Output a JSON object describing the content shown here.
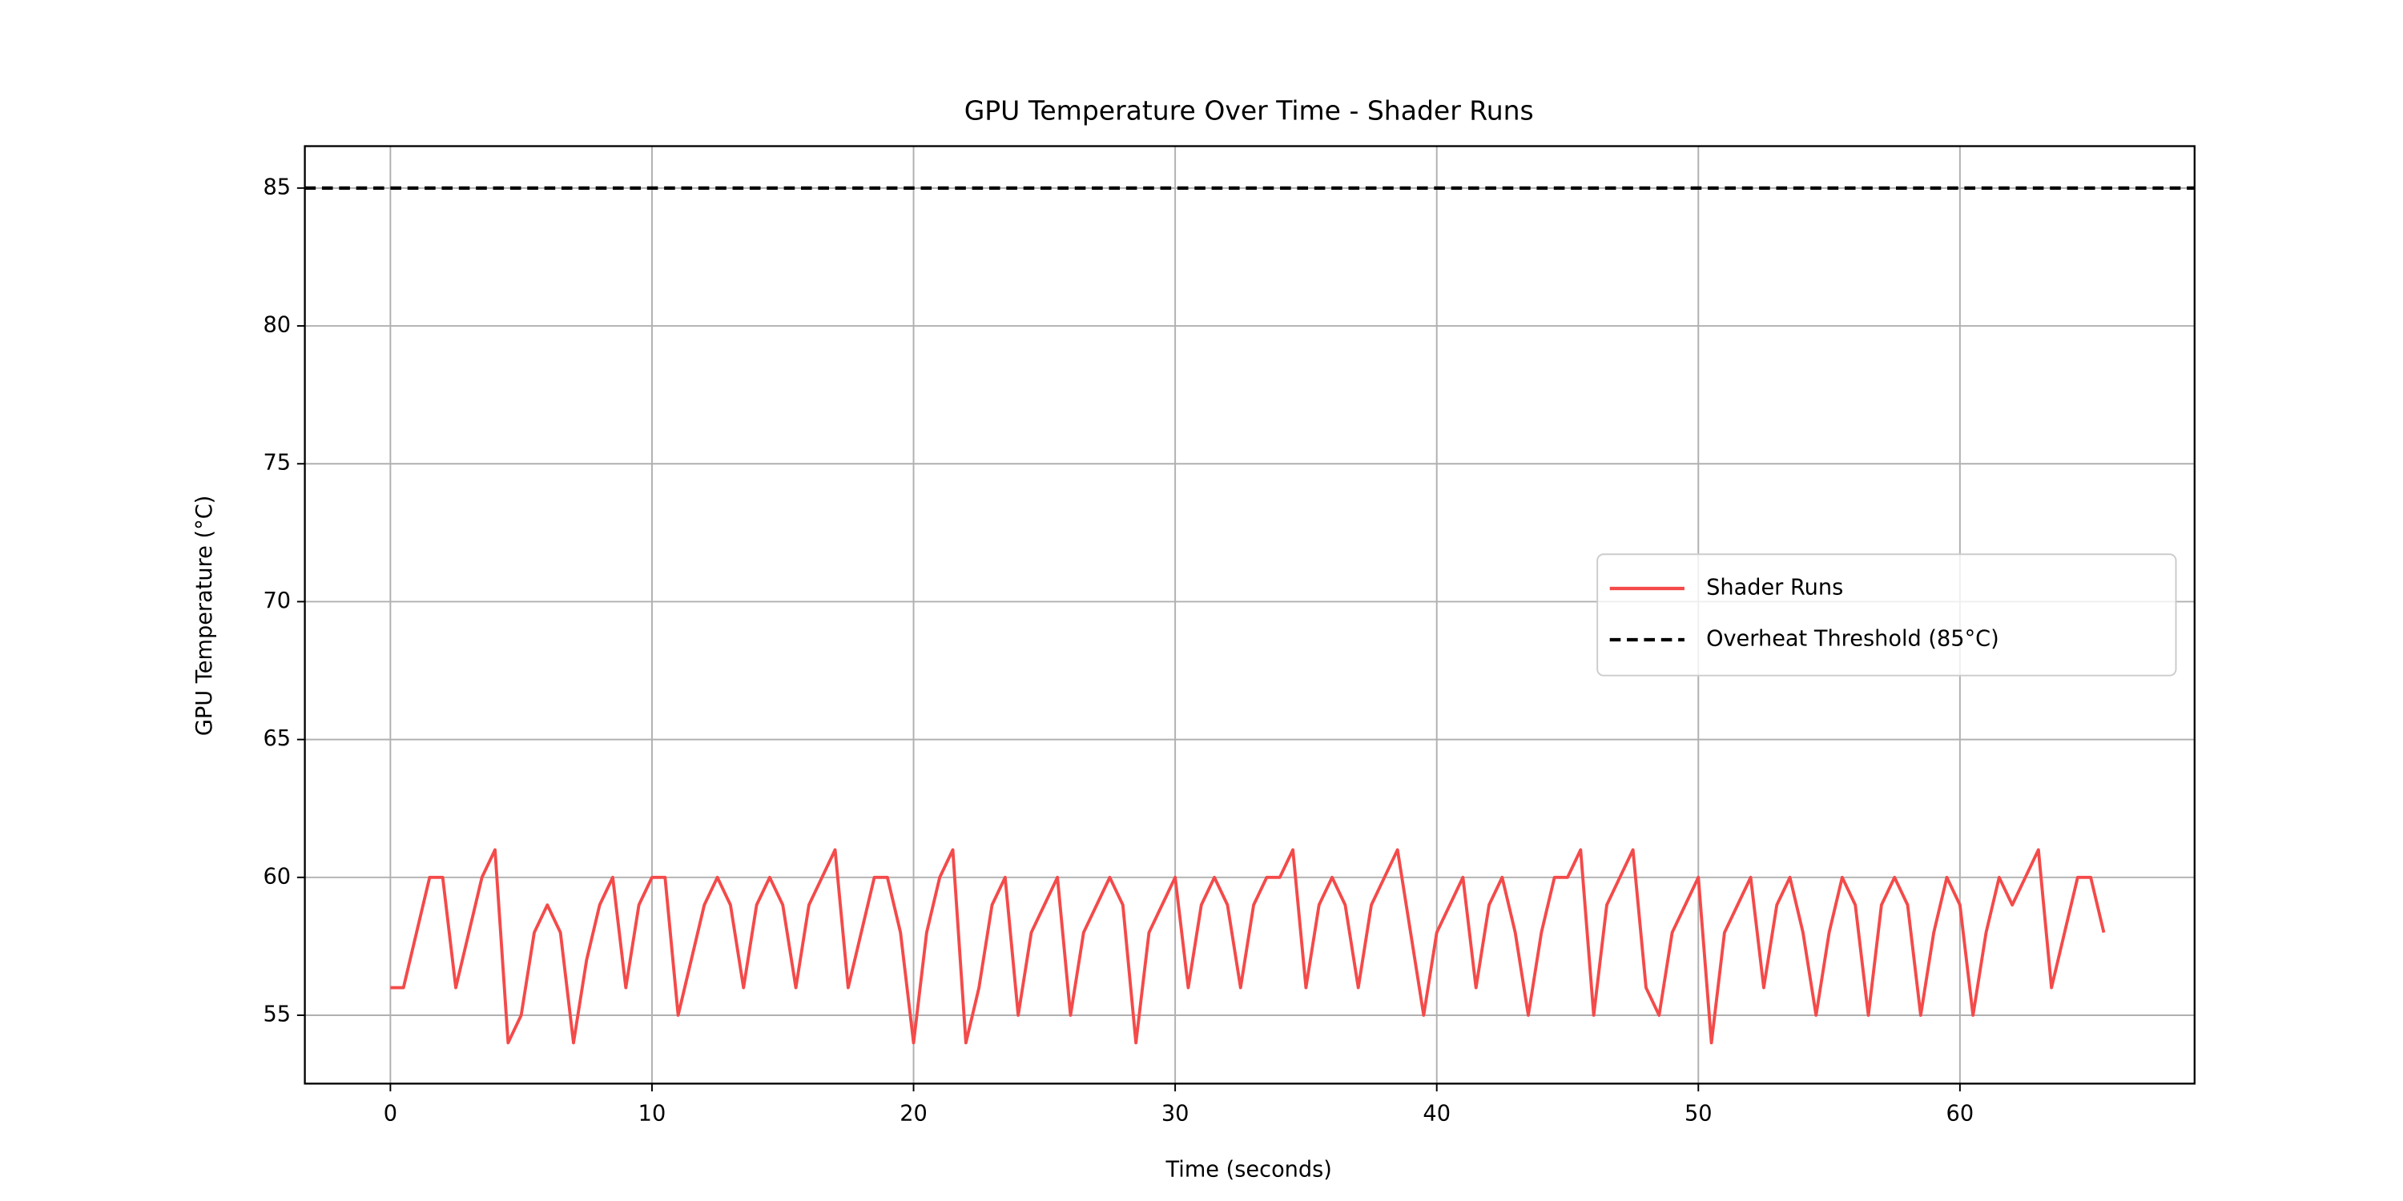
{
  "chart_data": {
    "type": "line",
    "title": "GPU Temperature Over Time - Shader Runs",
    "xlabel": "Time (seconds)",
    "ylabel": "GPU Temperature (°C)",
    "x": [
      0,
      0.5,
      1,
      1.5,
      2,
      2.5,
      3,
      3.5,
      4,
      4.5,
      5,
      5.5,
      6,
      6.5,
      7,
      7.5,
      8,
      8.5,
      9,
      9.5,
      10,
      10.5,
      11,
      11.5,
      12,
      12.5,
      13,
      13.5,
      14,
      14.5,
      15,
      15.5,
      16,
      16.5,
      17,
      17.5,
      18,
      18.5,
      19,
      19.5,
      20,
      20.5,
      21,
      21.5,
      22,
      22.5,
      23,
      23.5,
      24,
      24.5,
      25,
      25.5,
      26,
      26.5,
      27,
      27.5,
      28,
      28.5,
      29,
      29.5,
      30,
      30.5,
      31,
      31.5,
      32,
      32.5,
      33,
      33.5,
      34,
      34.5,
      35,
      35.5,
      36,
      36.5,
      37,
      37.5,
      38,
      38.5,
      39,
      39.5,
      40,
      40.5,
      41,
      41.5,
      42,
      42.5,
      43,
      43.5,
      44,
      44.5,
      45,
      45.5,
      46,
      46.5,
      47,
      47.5,
      48,
      48.5,
      49,
      49.5,
      50,
      50.5,
      51,
      51.5,
      52,
      52.5,
      53,
      53.5,
      54,
      54.5,
      55,
      55.5,
      56,
      56.5,
      57,
      57.5,
      58,
      58.5,
      59,
      59.5,
      60,
      60.5,
      61,
      61.5,
      62,
      62.5,
      63,
      63.5,
      64,
      64.5,
      65,
      65.5
    ],
    "series": [
      {
        "name": "Shader Runs",
        "color": "#f44a4a",
        "values": [
          56,
          56,
          58,
          60,
          60,
          56,
          58,
          60,
          61,
          54,
          55,
          58,
          59,
          58,
          54,
          57,
          59,
          60,
          56,
          59,
          60,
          60,
          55,
          57,
          59,
          60,
          59,
          56,
          59,
          60,
          59,
          56,
          59,
          60,
          61,
          56,
          58,
          60,
          60,
          58,
          54,
          58,
          60,
          61,
          54,
          56,
          59,
          60,
          55,
          58,
          59,
          60,
          55,
          58,
          59,
          60,
          59,
          54,
          58,
          59,
          60,
          56,
          59,
          60,
          59,
          56,
          59,
          60,
          60,
          61,
          56,
          59,
          60,
          59,
          56,
          59,
          60,
          61,
          58,
          55,
          58,
          59,
          60,
          56,
          59,
          60,
          58,
          55,
          58,
          60,
          60,
          61,
          55,
          59,
          60,
          61,
          56,
          55,
          58,
          59,
          60,
          54,
          58,
          59,
          60,
          56,
          59,
          60,
          58,
          55,
          58,
          60,
          59,
          55,
          59,
          60,
          59,
          55,
          58,
          60,
          59,
          55,
          58,
          60,
          59,
          60,
          61,
          56,
          58,
          60,
          60,
          58
        ]
      }
    ],
    "threshold": {
      "name": "Overheat Threshold (85°C)",
      "value": 85,
      "color": "#000000"
    },
    "xlim": [
      -3.27,
      68.97
    ],
    "ylim": [
      52.52,
      86.52
    ],
    "xticks": [
      0,
      10,
      20,
      30,
      40,
      50,
      60
    ],
    "yticks": [
      55,
      60,
      65,
      70,
      75,
      80,
      85
    ],
    "grid": true,
    "legend": "center right"
  }
}
